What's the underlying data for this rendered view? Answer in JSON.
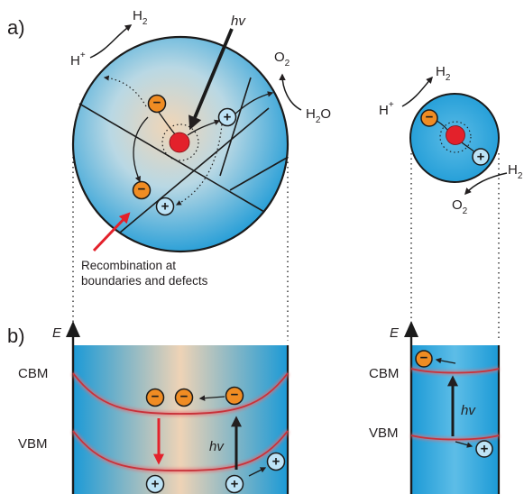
{
  "panel_labels": {
    "a": "a)",
    "b": "b)"
  },
  "large_particle": {
    "photon": "hv",
    "h_plus": "H",
    "h_plus_sup": "+",
    "h2_main": "H",
    "h2_sub": "2",
    "o2_main": "O",
    "o2_sub": "2",
    "h2o_main": "H",
    "h2o_sub": "2",
    "h2o_tail": "O",
    "annotation_line1": "Recombination at",
    "annotation_line2": "boundaries and defects",
    "electron_symbol": "−",
    "hole_symbol": "+"
  },
  "small_particle": {
    "h_plus": "H",
    "h_plus_sup": "+",
    "h2_main": "H",
    "h2_sub": "2",
    "h2o_main": "H",
    "h2o_sub": "2",
    "o2_main": "O",
    "o2_sub": "2"
  },
  "band_diagram_left": {
    "energy_axis": "E",
    "cbm": "CBM",
    "vbm": "VBM",
    "photon": "hv"
  },
  "band_diagram_right": {
    "energy_axis": "E",
    "cbm": "CBM",
    "vbm": "VBM",
    "photon": "hv"
  },
  "colors": {
    "semiconductor_blue": "#1c9ad6",
    "bulk_warm_center": "#f1d5b6",
    "electron_orange": "#f08c23",
    "hole_light_blue": "#bde3f6",
    "nucleus_red": "#e3212b",
    "band_edge_red": "#c8323a",
    "recombination_arrow_red": "#e3212b"
  }
}
